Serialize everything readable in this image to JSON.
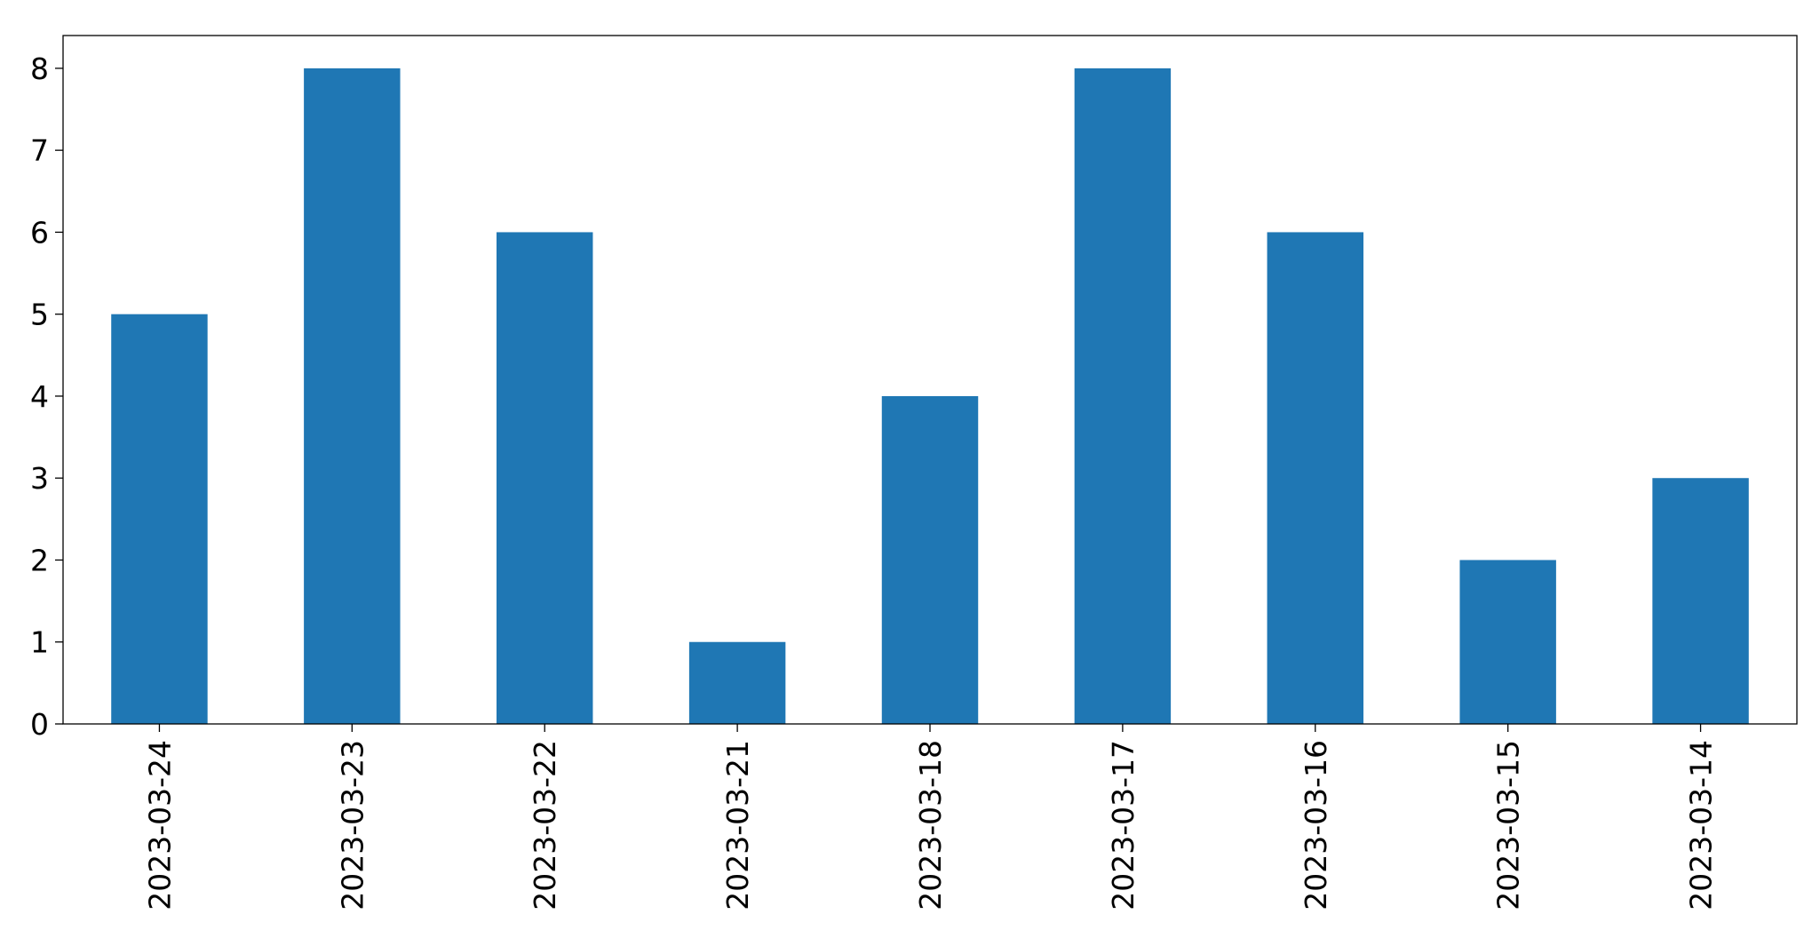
{
  "chart_data": {
    "type": "bar",
    "title": "",
    "xlabel": "",
    "ylabel": "",
    "categories": [
      "2023-03-24",
      "2023-03-23",
      "2023-03-22",
      "2023-03-21",
      "2023-03-18",
      "2023-03-17",
      "2023-03-16",
      "2023-03-15",
      "2023-03-14"
    ],
    "values": [
      5,
      8,
      6,
      1,
      4,
      8,
      6,
      2,
      3
    ],
    "ylim": [
      0,
      8.4
    ],
    "yticks": [
      0,
      1,
      2,
      3,
      4,
      5,
      6,
      7,
      8
    ],
    "grid": false,
    "legend": "none",
    "bar_color": "#1f77b4"
  }
}
